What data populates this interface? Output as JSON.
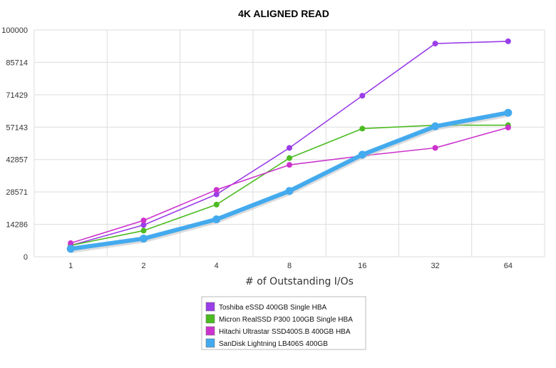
{
  "chart_data": {
    "type": "line",
    "title": "4K ALIGNED READ",
    "xlabel": "# of Outstanding I/Os",
    "ylabel": "",
    "categories": [
      "1",
      "2",
      "4",
      "8",
      "16",
      "32",
      "64"
    ],
    "yticks": [
      "0",
      "14286",
      "28571",
      "42857",
      "57143",
      "71429",
      "85714",
      "100000"
    ],
    "ylim": [
      0,
      100000
    ],
    "grid": true,
    "legend_position": "bottom",
    "series": [
      {
        "name": "Toshiba eSSD 400GB Single HBA",
        "color": "#9a3ee8",
        "values": [
          5000,
          14000,
          27500,
          48000,
          71000,
          94000,
          95000
        ]
      },
      {
        "name": "Micron RealSSD P300 100GB Single HBA",
        "color": "#4cbb22",
        "values": [
          5000,
          11500,
          23000,
          43500,
          56500,
          58000,
          58000
        ]
      },
      {
        "name": "Hitachi Ultrastar SSD400S.B 400GB HBA",
        "color": "#cc33cc",
        "values": [
          6000,
          16000,
          29500,
          40500,
          44500,
          48000,
          57000
        ]
      },
      {
        "name": "SanDisk Lightning LB406S 400GB",
        "color": "#44aaee",
        "values": [
          3500,
          8000,
          16500,
          29000,
          45000,
          57500,
          63500
        ]
      }
    ]
  }
}
